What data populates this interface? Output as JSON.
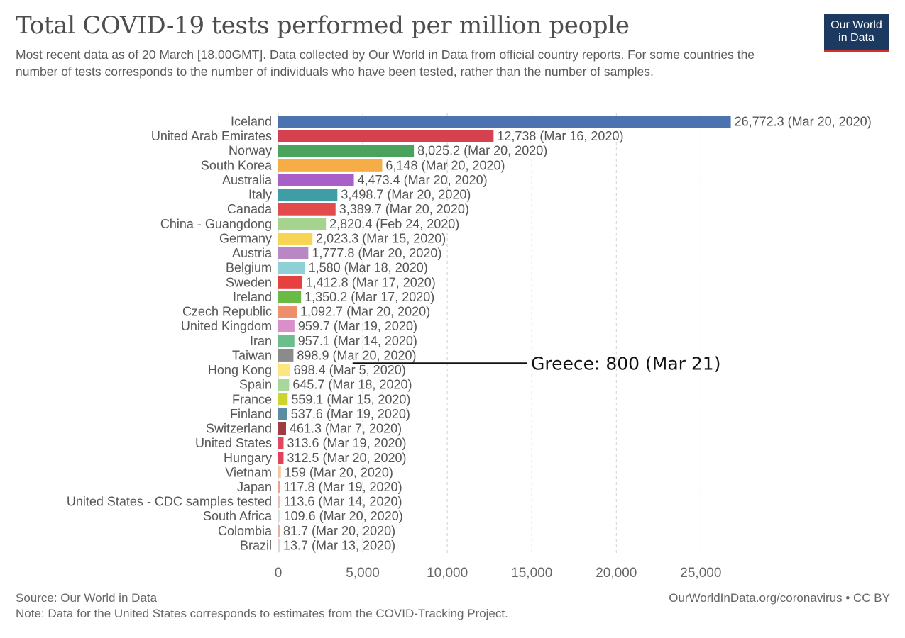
{
  "header": {
    "title": "Total COVID-19 tests performed per million people",
    "subtitle": "Most recent data as of 20 March [18.00GMT]. Data collected by Our World in Data from official country reports. For some countries the number of tests corresponds to the number of individuals who have been tested, rather than the number of samples.",
    "logo_line1": "Our World",
    "logo_line2": "in Data"
  },
  "footer": {
    "source": "Source: Our World in Data",
    "note": "Note: Data for the United States corresponds to estimates from the COVID-Tracking Project.",
    "credit": "OurWorldInData.org/coronavirus • CC BY"
  },
  "colors": {
    "logo_bg": "#1c3a5f",
    "logo_stripe": "#d32f2f"
  },
  "chart_data": {
    "type": "bar",
    "orientation": "horizontal",
    "title": "Total COVID-19 tests performed per million people",
    "xlabel": "",
    "ylabel": "",
    "xlim": [
      0,
      27000
    ],
    "xticks": [
      0,
      5000,
      10000,
      15000,
      20000,
      25000
    ],
    "xtick_labels": [
      "0",
      "5,000",
      "10,000",
      "15,000",
      "20,000",
      "25,000"
    ],
    "grid": true,
    "categories": [
      "Iceland",
      "United Arab Emirates",
      "Norway",
      "South Korea",
      "Australia",
      "Italy",
      "Canada",
      "China - Guangdong",
      "Germany",
      "Austria",
      "Belgium",
      "Sweden",
      "Ireland",
      "Czech Republic",
      "United Kingdom",
      "Iran",
      "Taiwan",
      "Hong Kong",
      "Spain",
      "France",
      "Finland",
      "Switzerland",
      "United States",
      "Hungary",
      "Vietnam",
      "Japan",
      "United States - CDC samples tested",
      "South Africa",
      "Colombia",
      "Brazil"
    ],
    "values": [
      26772.3,
      12738,
      8025.2,
      6148,
      4473.4,
      3498.7,
      3389.7,
      2820.4,
      2023.3,
      1777.8,
      1580,
      1412.8,
      1350.2,
      1092.7,
      959.7,
      957.1,
      898.9,
      698.4,
      645.7,
      559.1,
      537.6,
      461.3,
      313.6,
      312.5,
      159,
      117.8,
      113.6,
      109.6,
      81.7,
      13.7
    ],
    "value_labels": [
      "26,772.3 (Mar 20, 2020)",
      "12,738 (Mar 16, 2020)",
      "8,025.2 (Mar 20, 2020)",
      "6,148 (Mar 20, 2020)",
      "4,473.4 (Mar 20, 2020)",
      "3,498.7 (Mar 20, 2020)",
      "3,389.7 (Mar 20, 2020)",
      "2,820.4 (Feb 24, 2020)",
      "2,023.3 (Mar 15, 2020)",
      "1,777.8 (Mar 20, 2020)",
      "1,580 (Mar 18, 2020)",
      "1,412.8 (Mar 17, 2020)",
      "1,350.2 (Mar 17, 2020)",
      "1,092.7 (Mar 20, 2020)",
      "959.7 (Mar 19, 2020)",
      "957.1 (Mar 14, 2020)",
      "898.9 (Mar 20, 2020)",
      "698.4 (Mar 5, 2020)",
      "645.7 (Mar 18, 2020)",
      "559.1 (Mar 15, 2020)",
      "537.6 (Mar 19, 2020)",
      "461.3 (Mar 7, 2020)",
      "313.6 (Mar 19, 2020)",
      "312.5 (Mar 20, 2020)",
      "159 (Mar 20, 2020)",
      "117.8 (Mar 19, 2020)",
      "113.6 (Mar 14, 2020)",
      "109.6 (Mar 20, 2020)",
      "81.7 (Mar 20, 2020)",
      "13.7 (Mar 13, 2020)"
    ],
    "bar_colors": [
      "#4c72b0",
      "#d6414f",
      "#4aa35c",
      "#f6ad46",
      "#a85fc8",
      "#3f9ea5",
      "#e24b4b",
      "#a6d28f",
      "#f8d455",
      "#b887c4",
      "#8fcfd6",
      "#e5413f",
      "#6abb45",
      "#ee8f6b",
      "#d98fc7",
      "#6cbe8d",
      "#8b8b8b",
      "#fde67d",
      "#a7d79a",
      "#cdd42f",
      "#5a8da3",
      "#9e3b3f",
      "#e0485e",
      "#e4405a",
      "#f3c7a3",
      "#e8a091",
      "#e6bfb8",
      "#dfdfdf",
      "#e8b19a",
      "#d9d9d9"
    ],
    "annotation": {
      "text": "Greece: 800 (Mar 21)",
      "category_after": "Taiwan",
      "line_from_value": 4400
    }
  }
}
